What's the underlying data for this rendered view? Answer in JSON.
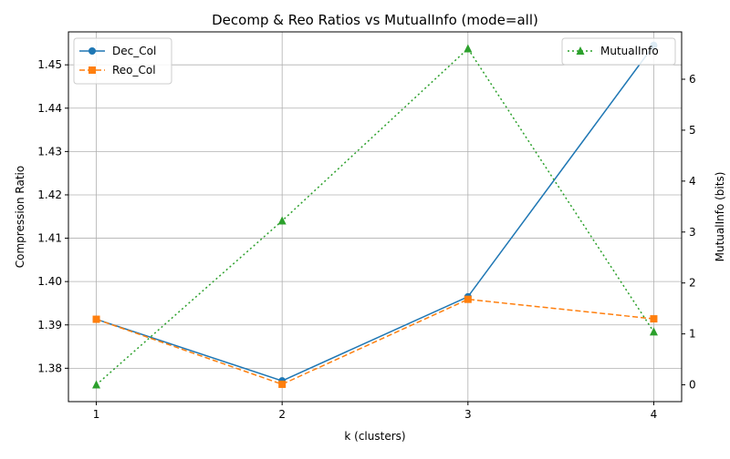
{
  "chart_data": {
    "type": "line",
    "title": "Decomp & Reo Ratios vs MutualInfo (mode=all)",
    "xlabel": "k (clusters)",
    "ylabel": "Compression Ratio",
    "y2label": "MutualInfo (bits)",
    "x": [
      1,
      2,
      3,
      4
    ],
    "x_ticks": [
      "1",
      "2",
      "3",
      "4"
    ],
    "ylim": [
      1.3723,
      1.4576
    ],
    "y_ticks": [
      "1.38",
      "1.39",
      "1.40",
      "1.41",
      "1.42",
      "1.43",
      "1.44",
      "1.45"
    ],
    "y2lim": [
      -0.33,
      6.93
    ],
    "y2_ticks": [
      "0",
      "1",
      "2",
      "3",
      "4",
      "5",
      "6"
    ],
    "grid": true,
    "series": [
      {
        "name": "Dec_Col",
        "axis": "left",
        "values": [
          1.3913,
          1.3771,
          1.3965,
          1.4545
        ],
        "color": "#1f77b4",
        "marker": "circle",
        "linestyle": "solid"
      },
      {
        "name": "Reo_Col",
        "axis": "left",
        "values": [
          1.3913,
          1.3763,
          1.3959,
          1.3914
        ],
        "color": "#ff7f0e",
        "marker": "square",
        "linestyle": "dashed"
      },
      {
        "name": "MutualInfo",
        "axis": "right",
        "values": [
          0.0,
          3.22,
          6.6,
          1.04
        ],
        "color": "#2ca02c",
        "marker": "triangle",
        "linestyle": "dotted"
      }
    ],
    "legend_left": {
      "placement": "top-left",
      "entries": [
        "Dec_Col",
        "Reo_Col"
      ]
    },
    "legend_right": {
      "placement": "top-right",
      "entries": [
        "MutualInfo"
      ]
    }
  }
}
